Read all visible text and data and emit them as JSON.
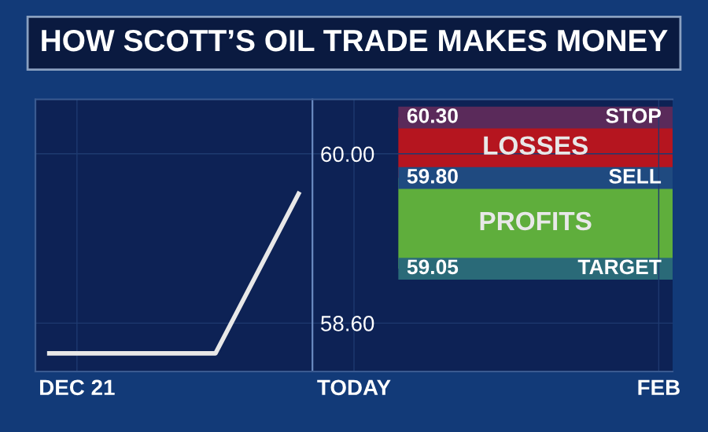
{
  "chart_data": {
    "type": "line",
    "title": "HOW SCOTT’S OIL TRADE MAKES MONEY",
    "categories": [
      null,
      "DEC 21",
      null,
      null,
      null,
      null,
      null,
      null,
      null,
      null,
      null,
      "TODAY",
      null,
      null,
      null,
      null,
      null,
      null,
      null,
      null,
      null,
      null,
      "FEB"
    ],
    "series": [
      {
        "values": [
          58.35,
          58.35,
          58.35,
          58.35,
          58.35,
          58.35,
          58.35,
          58.79,
          59.23,
          59.67,
          null,
          null,
          null,
          null,
          null,
          null,
          null,
          null,
          null,
          null,
          null,
          null,
          null
        ],
        "color": "#e8e8e8"
      }
    ],
    "ylim": [
      58.2,
      60.45
    ],
    "yticks": [
      {
        "value": 58.6,
        "label": "58.60"
      },
      {
        "value": 60.0,
        "label": "60.00"
      }
    ],
    "ref_lines": [
      {
        "axis": "y",
        "value": 60.3,
        "label": "STOP",
        "color": "#5a2a5a"
      },
      {
        "axis": "y",
        "value": 59.8,
        "label": "SELL",
        "color": "#1f4a80"
      },
      {
        "axis": "y",
        "value": 59.05,
        "label": "TARGET",
        "color": "#2a6a78"
      }
    ],
    "bands": [
      {
        "axis": "y",
        "from": 59.8,
        "to": 60.3,
        "label": "LOSSES",
        "color": "#b5151f"
      },
      {
        "axis": "y",
        "from": 59.05,
        "to": 59.8,
        "label": "PROFITS",
        "color": "#5fae3c"
      }
    ],
    "annotations": [
      {
        "text": "60.30",
        "y": 60.3
      },
      {
        "text": "59.80",
        "y": 59.8
      },
      {
        "text": "59.05",
        "y": 59.05
      }
    ],
    "grid": true,
    "legend": false,
    "marker": "none",
    "line_style": "solid"
  }
}
